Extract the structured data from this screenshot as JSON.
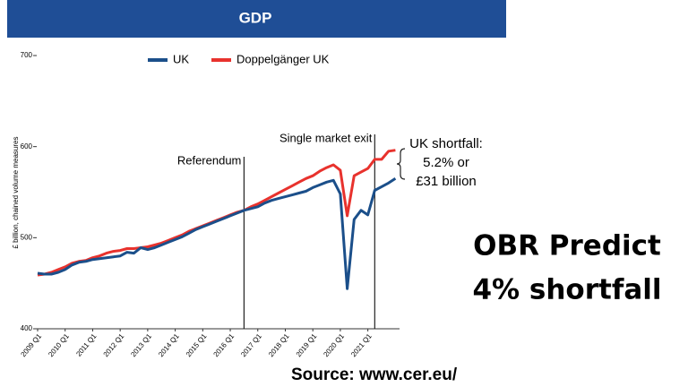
{
  "header": {
    "title": "GDP"
  },
  "chart_data": {
    "type": "line",
    "y_label": "£ billion, chained volume measures",
    "categories": [
      "2009 Q1",
      null,
      null,
      null,
      "2010 Q1",
      null,
      null,
      null,
      "2011 Q1",
      null,
      null,
      null,
      "2012 Q1",
      null,
      null,
      null,
      "2013 Q1",
      null,
      null,
      null,
      "2014 Q1",
      null,
      null,
      null,
      "2015 Q1",
      null,
      null,
      null,
      "2016 Q1",
      null,
      null,
      null,
      "2017 Q1",
      null,
      null,
      null,
      "2018 Q1",
      null,
      null,
      null,
      "2019 Q1",
      null,
      null,
      null,
      "2020 Q1",
      null,
      null,
      null,
      "2021 Q1",
      null,
      null,
      null,
      null
    ],
    "series": [
      {
        "name": "UK",
        "color": "#1b4f8a",
        "values": [
          461,
          460,
          460,
          462,
          465,
          470,
          473,
          474,
          476,
          477,
          478,
          479,
          480,
          484,
          483,
          489,
          487,
          489,
          492,
          495,
          498,
          501,
          505,
          509,
          512,
          515,
          518,
          521,
          524,
          527,
          530,
          532,
          534,
          538,
          541,
          543,
          545,
          547,
          549,
          551,
          555,
          558,
          561,
          563,
          548,
          444,
          520,
          530,
          525,
          552,
          556,
          560,
          565
        ]
      },
      {
        "name": "Doppelgänger UK",
        "color": "#e8322d",
        "values": [
          459,
          460,
          462,
          465,
          468,
          472,
          474,
          475,
          478,
          480,
          483,
          485,
          486,
          488,
          488,
          489,
          490,
          492,
          494,
          497,
          500,
          503,
          507,
          510,
          513,
          516,
          519,
          522,
          525,
          528,
          530,
          534,
          537,
          541,
          545,
          549,
          553,
          557,
          561,
          565,
          568,
          573,
          577,
          580,
          574,
          524,
          568,
          572,
          576,
          586,
          586,
          595,
          596
        ]
      }
    ],
    "ylim": [
      400,
      700
    ],
    "yticks": [
      400,
      500,
      600,
      700
    ],
    "grid": false,
    "annotations": [
      "Referendum",
      "Single market exit"
    ],
    "shortfall": [
      "UK shortfall:",
      "5.2% or",
      "£31 billion"
    ]
  },
  "callout": [
    "OBR Predict",
    "4% shortfall"
  ],
  "source": "Source: www.cer.eu/"
}
